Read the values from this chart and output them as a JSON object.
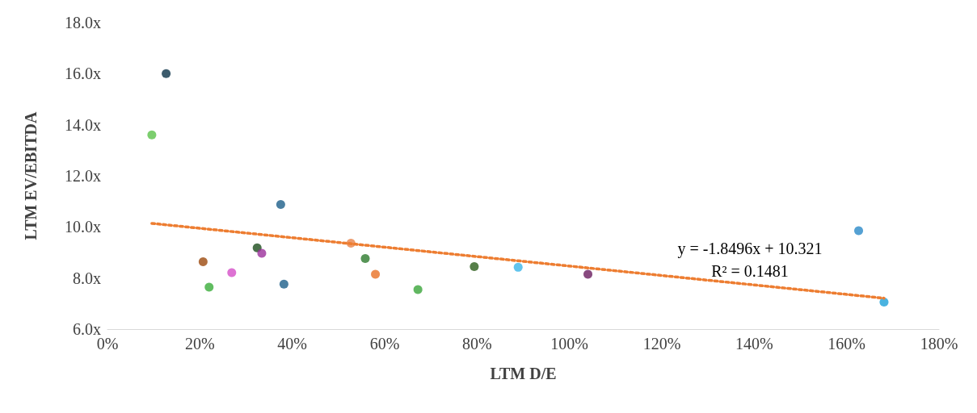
{
  "chart_data": {
    "type": "scatter",
    "xlabel": "LTM D/E",
    "ylabel": "LTM EV/EBITDA",
    "xlim": [
      0,
      1.8
    ],
    "xticks": [
      {
        "value": 0,
        "label": "0%"
      },
      {
        "value": 0.2,
        "label": "20%"
      },
      {
        "value": 0.4,
        "label": "40%"
      },
      {
        "value": 0.6,
        "label": "60%"
      },
      {
        "value": 0.8,
        "label": "80%"
      },
      {
        "value": 1.0,
        "label": "100%"
      },
      {
        "value": 1.2,
        "label": "120%"
      },
      {
        "value": 1.4,
        "label": "140%"
      },
      {
        "value": 1.6,
        "label": "160%"
      },
      {
        "value": 1.8,
        "label": "180%"
      }
    ],
    "ylim": [
      6,
      18
    ],
    "yticks": [
      {
        "value": 6,
        "label": "6.0x"
      },
      {
        "value": 8,
        "label": "8.0x"
      },
      {
        "value": 10,
        "label": "10.0x"
      },
      {
        "value": 12,
        "label": "12.0x"
      },
      {
        "value": 14,
        "label": "14.0x"
      },
      {
        "value": 16,
        "label": "16.0x"
      },
      {
        "value": 18,
        "label": "18.0x"
      }
    ],
    "grid": false,
    "series": [
      {
        "type": "scatter",
        "marker": "circle",
        "x": [
          0.127,
          0.096,
          0.207,
          0.22,
          0.269,
          0.324,
          0.334,
          0.375,
          0.382,
          0.527,
          0.558,
          0.58,
          0.672,
          0.794,
          0.889,
          1.04,
          1.626,
          1.681
        ],
        "values": [
          16.0,
          13.6,
          8.64,
          7.64,
          8.21,
          9.18,
          8.97,
          10.88,
          7.76,
          9.36,
          8.76,
          8.15,
          7.55,
          8.45,
          8.42,
          8.15,
          9.85,
          7.06
        ],
        "colors": [
          "#0d3349",
          "#5bc24a",
          "#9c4a0e",
          "#3aad3a",
          "#d44fc8",
          "#1d4d1d",
          "#9b2f9b",
          "#1d5f8a",
          "#1d5f8a",
          "#e8834a",
          "#2d7a2d",
          "#e87024",
          "#3aa53a",
          "#2d5f1d",
          "#3ab5e8",
          "#6a1d5f",
          "#2a8ac8",
          "#1da0d8"
        ]
      },
      {
        "type": "line",
        "marker": "none",
        "line_style": "dotted",
        "color": "#ed7d31",
        "x": [
          0.096,
          1.681
        ],
        "values": [
          10.14,
          7.21
        ]
      }
    ],
    "annotations": [
      "y = -1.8496x + 10.321",
      "R² = 0.1481"
    ]
  }
}
